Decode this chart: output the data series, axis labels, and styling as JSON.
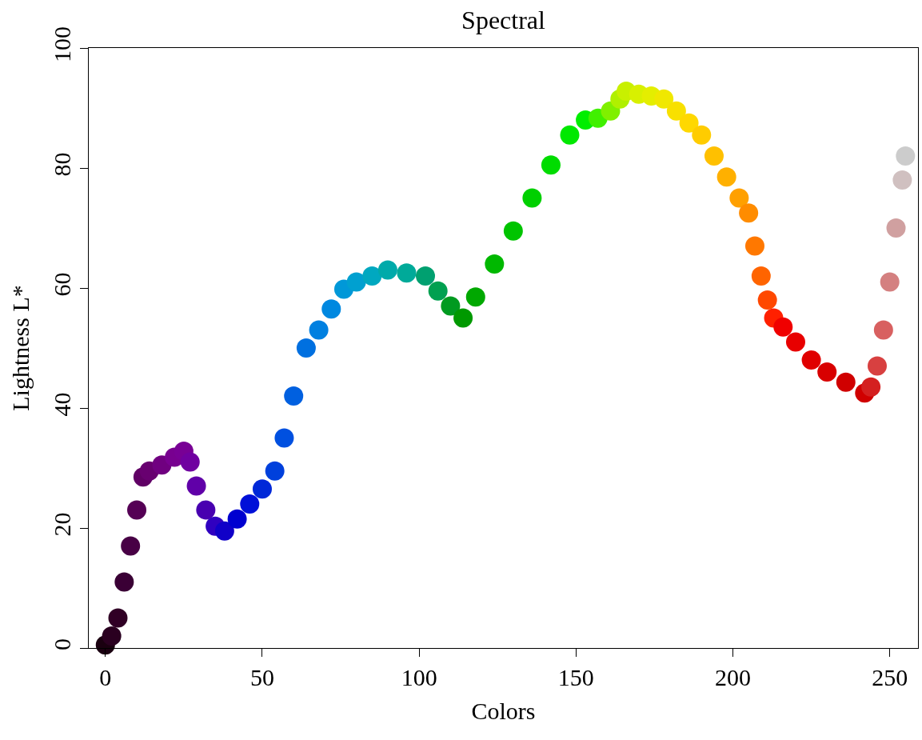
{
  "chart_data": {
    "type": "scatter",
    "title": "Spectral",
    "xlabel": "Colors",
    "ylabel": "Lightness L*",
    "x": [
      0,
      2,
      4,
      6,
      8,
      10,
      12,
      14,
      18,
      22,
      25,
      27,
      29,
      32,
      35,
      38,
      42,
      46,
      50,
      54,
      57,
      60,
      64,
      68,
      72,
      76,
      80,
      85,
      90,
      96,
      102,
      106,
      110,
      114,
      118,
      124,
      130,
      136,
      142,
      148,
      153,
      157,
      161,
      164,
      166,
      170,
      174,
      178,
      182,
      186,
      190,
      194,
      198,
      202,
      205,
      207,
      209,
      211,
      213,
      216,
      220,
      225,
      230,
      236,
      242,
      244,
      246,
      248,
      250,
      252,
      254,
      255
    ],
    "values": [
      0.5,
      2,
      5,
      11,
      17,
      23,
      28.5,
      29.5,
      30.5,
      31.8,
      32.8,
      31,
      27,
      23,
      20.3,
      19.5,
      21.5,
      24,
      26.5,
      29.5,
      35,
      42,
      50,
      53,
      56.5,
      59.8,
      61,
      62,
      63,
      62.5,
      62,
      59.5,
      57,
      55,
      58.5,
      64,
      69.5,
      75,
      80.5,
      85.5,
      88,
      88.3,
      89.5,
      91.5,
      92.8,
      92.3,
      92,
      91.5,
      89.5,
      87.5,
      85.5,
      82,
      78.5,
      75,
      72.5,
      67,
      62,
      58,
      55,
      53.5,
      51,
      48,
      46,
      44.3,
      42.5,
      43.5,
      47,
      53,
      61,
      70,
      78,
      82
    ],
    "colors": [
      "#1a0010",
      "#2a0020",
      "#300025",
      "#3a0035",
      "#480045",
      "#550055",
      "#600065",
      "#680070",
      "#700080",
      "#780090",
      "#780095",
      "#7000a0",
      "#6000a8",
      "#4800b0",
      "#3000c0",
      "#1000c8",
      "#0000d0",
      "#0010d8",
      "#0028d8",
      "#0040dc",
      "#0050e0",
      "#0060e0",
      "#0070e0",
      "#0080e0",
      "#0088e0",
      "#0098d8",
      "#00a0d0",
      "#00a8c0",
      "#00aaaa",
      "#00aa99",
      "#00a070",
      "#00a050",
      "#009a20",
      "#009900",
      "#00a800",
      "#00b800",
      "#00c400",
      "#00d000",
      "#00dc00",
      "#00e800",
      "#00ee00",
      "#40f000",
      "#80f000",
      "#b0f000",
      "#c8f000",
      "#d8f000",
      "#e4ee00",
      "#f0e800",
      "#f8e000",
      "#ffd800",
      "#ffcc00",
      "#ffc000",
      "#ffb000",
      "#ffa000",
      "#ff8c00",
      "#ff7800",
      "#ff6400",
      "#ff4800",
      "#ff2000",
      "#f00000",
      "#e80000",
      "#e00000",
      "#d80000",
      "#d00000",
      "#d00000",
      "#d42020",
      "#d84040",
      "#d86060",
      "#d48080",
      "#d0a0a0",
      "#d0c0c0",
      "#cccccc"
    ],
    "xlim": [
      -5.3,
      259
    ],
    "ylim": [
      0,
      100
    ],
    "xticks": [
      0,
      50,
      100,
      150,
      200,
      250
    ],
    "yticks": [
      0,
      20,
      40,
      60,
      80,
      100
    ],
    "marker": "circle"
  }
}
